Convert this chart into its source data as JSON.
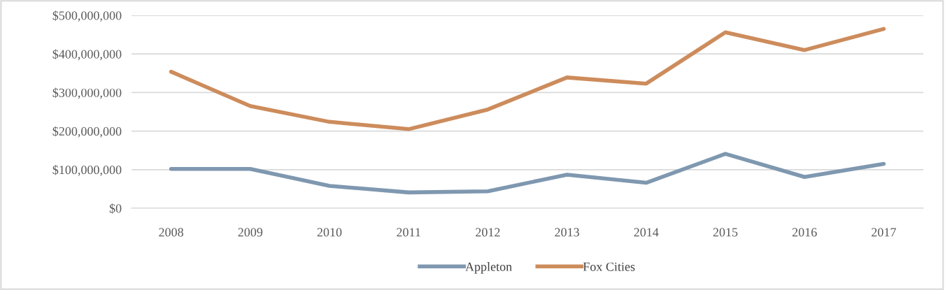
{
  "chart_data": {
    "type": "line",
    "categories": [
      "2008",
      "2009",
      "2010",
      "2011",
      "2012",
      "2013",
      "2014",
      "2015",
      "2016",
      "2017"
    ],
    "series": [
      {
        "name": "Appleton",
        "color": "#7f98b0",
        "values": [
          102000000,
          102000000,
          58000000,
          41000000,
          44000000,
          87000000,
          66000000,
          141000000,
          81000000,
          115000000
        ]
      },
      {
        "name": "Fox Cities",
        "color": "#cd8c5c",
        "values": [
          354000000,
          265000000,
          224000000,
          205000000,
          256000000,
          339000000,
          323000000,
          456000000,
          410000000,
          465000000
        ]
      }
    ],
    "ylim": [
      0,
      500000000
    ],
    "yticks": [
      {
        "value": 0,
        "label": "$0"
      },
      {
        "value": 100000000,
        "label": "$100,000,000"
      },
      {
        "value": 200000000,
        "label": "$200,000,000"
      },
      {
        "value": 300000000,
        "label": "$300,000,000"
      },
      {
        "value": 400000000,
        "label": "$400,000,000"
      },
      {
        "value": 500000000,
        "label": "$500,000,000"
      }
    ],
    "grid": "y",
    "legend": "bottom",
    "marker": "none",
    "line_style": "solid"
  }
}
